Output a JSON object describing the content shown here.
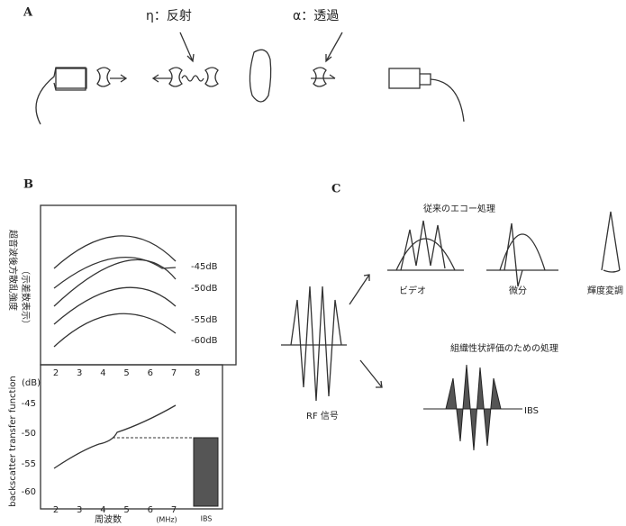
{
  "panel_a": {
    "label": "A",
    "reflection": "η：反射",
    "transmission": "α：透過"
  },
  "panel_b": {
    "label": "B",
    "upper": {
      "y_label": "超音波後方散乱強度",
      "y_sublabel": "（示差数表示）",
      "curve_labels": [
        "-45dB",
        "-50dB",
        "-55dB",
        "-60dB"
      ],
      "x_ticks": [
        "2",
        "3",
        "4",
        "5",
        "6",
        "7",
        "8"
      ]
    },
    "lower": {
      "unit": "(dB)",
      "y_ticks": [
        "-45",
        "-50",
        "-55",
        "-60"
      ],
      "y_label": "backscatter transfer function",
      "x_ticks": [
        "2",
        "3",
        "4",
        "5",
        "6",
        "7"
      ],
      "bar_label": "IBS",
      "x_label": "周波数",
      "x_unit": "(MHz)"
    }
  },
  "panel_c": {
    "label": "C",
    "conventional": "従来のエコー処理",
    "video": "ビデオ",
    "derivative": "微分",
    "brightness": "輝度変調",
    "tissue": "組織性状評価のための処理",
    "rf": "RF 信号",
    "ibs": "IBS"
  }
}
